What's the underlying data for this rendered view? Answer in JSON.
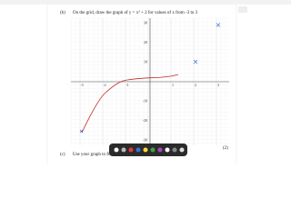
{
  "question_b": {
    "label": "(b)",
    "text": "On the grid, draw the graph of y = x³ + 2 for values of x from -3 to 3"
  },
  "y_axis_labels": [
    "30",
    "20",
    "10",
    "-10",
    "-20",
    "-30"
  ],
  "x_axis_labels": [
    "-3",
    "-2",
    "-1",
    "1",
    "2",
    "3"
  ],
  "marks": "(2)",
  "question_c": {
    "label": "(c)",
    "text": "Use your graph to find"
  }
}
